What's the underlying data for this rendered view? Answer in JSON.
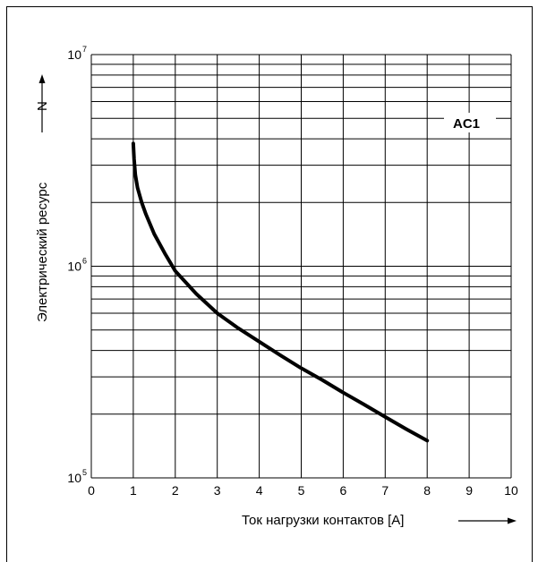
{
  "chart_data": {
    "type": "line",
    "title": "",
    "xlabel": "Ток нагрузки контактов [A]",
    "ylabel": "Электрический ресурс",
    "ylabel_symbol": "N",
    "xlim": [
      0,
      10
    ],
    "ylim": [
      100000,
      10000000
    ],
    "yscale": "log",
    "x_ticks": [
      "0",
      "1",
      "2",
      "3",
      "4",
      "5",
      "6",
      "7",
      "8",
      "9",
      "10"
    ],
    "y_ticks": [
      {
        "base": "10",
        "exp": "5"
      },
      {
        "base": "10",
        "exp": "6"
      },
      {
        "base": "10",
        "exp": "7"
      }
    ],
    "grid": true,
    "series": [
      {
        "name": "AC1",
        "color": "#000000",
        "x": [
          1.0,
          1.02,
          1.05,
          1.1,
          1.2,
          1.3,
          1.5,
          1.75,
          2.0,
          2.5,
          3.0,
          3.5,
          4.0,
          4.5,
          5.0,
          5.5,
          6.0,
          6.5,
          7.0,
          7.5,
          8.0
        ],
        "y": [
          3800000,
          3200000,
          2700000,
          2350000,
          2000000,
          1760000,
          1420000,
          1150000,
          950000,
          740000,
          600000,
          510000,
          440000,
          380000,
          330000,
          290000,
          253000,
          222000,
          194000,
          170000,
          150000
        ]
      }
    ]
  }
}
